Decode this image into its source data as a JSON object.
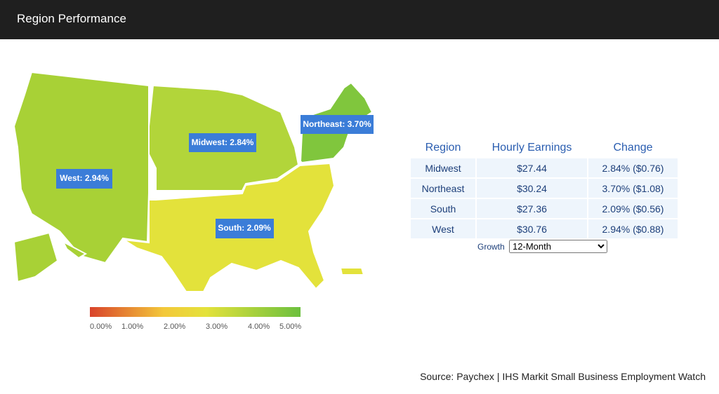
{
  "header": {
    "title": "Region Performance"
  },
  "map": {
    "regions": [
      {
        "name": "West",
        "label": "West: 2.94%",
        "color": "#a8d136"
      },
      {
        "name": "Midwest",
        "label": "Midwest: 2.84%",
        "color": "#b2d53a"
      },
      {
        "name": "South",
        "label": "South: 2.09%",
        "color": "#e3e23b"
      },
      {
        "name": "Northeast",
        "label": "Northeast: 3.70%",
        "color": "#80c63d"
      }
    ]
  },
  "legend": {
    "ticks": [
      "0.00%",
      "1.00%",
      "2.00%",
      "3.00%",
      "4.00%",
      "5.00%"
    ]
  },
  "table": {
    "columns": [
      "Region",
      "Hourly Earnings",
      "Change"
    ],
    "rows": [
      [
        "Midwest",
        "$27.44",
        "2.84% ($0.76)"
      ],
      [
        "Northeast",
        "$30.24",
        "3.70% ($1.08)"
      ],
      [
        "South",
        "$27.36",
        "2.09% ($0.56)"
      ],
      [
        "West",
        "$30.76",
        "2.94% ($0.88)"
      ]
    ]
  },
  "control": {
    "label": "Growth",
    "options": [
      "12-Month"
    ]
  },
  "source": "Source: Paychex | IHS Markit Small Business Employment Watch"
}
